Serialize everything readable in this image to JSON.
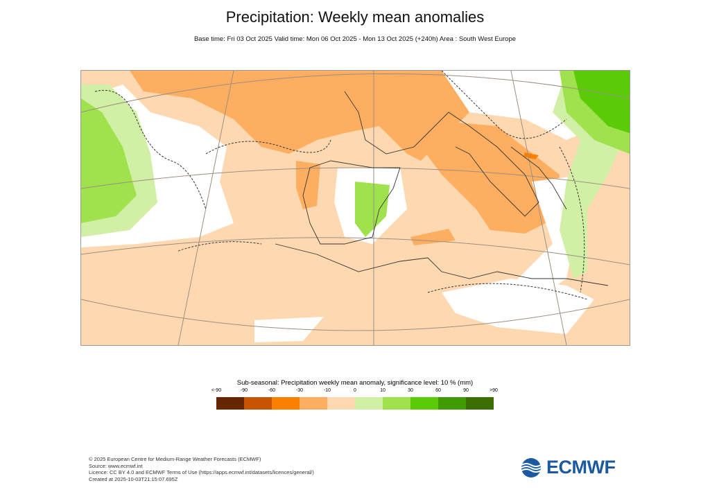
{
  "title": "Precipitation: Weekly mean anomalies",
  "subtitle": "Base time: Fri 03 Oct 2025 Valid time: Mon 06 Oct 2025 - Mon 13 Oct 2025 (+240h) Area : South West Europe",
  "legend": {
    "title": "Sub-seasonal: Precipitation weekly mean anomaly, significance level: 10 % (mm)",
    "labels": [
      "<-90",
      "-90",
      "-60",
      "-30",
      "-10",
      "0",
      "10",
      "30",
      "60",
      "90",
      ">90"
    ],
    "colors": [
      "#662600",
      "#c65400",
      "#fd7f00",
      "#fdae61",
      "#fed8b1",
      "#d1f0a5",
      "#a0e24e",
      "#5ccb07",
      "#409b00",
      "#3a6e00"
    ]
  },
  "footer": [
    "© 2025 European Centre for Medium-Range Weather Forecasts (ECMWF)",
    "Source: www.ecmwf.int",
    "Licence: CC BY 4.0 and ECMWF Terms of Use (https://apps.ecmwf.int/datasets/licences/general/)",
    "Created at 2025-10-03T21:15:07.695Z"
  ],
  "logo": "ECMWF"
}
